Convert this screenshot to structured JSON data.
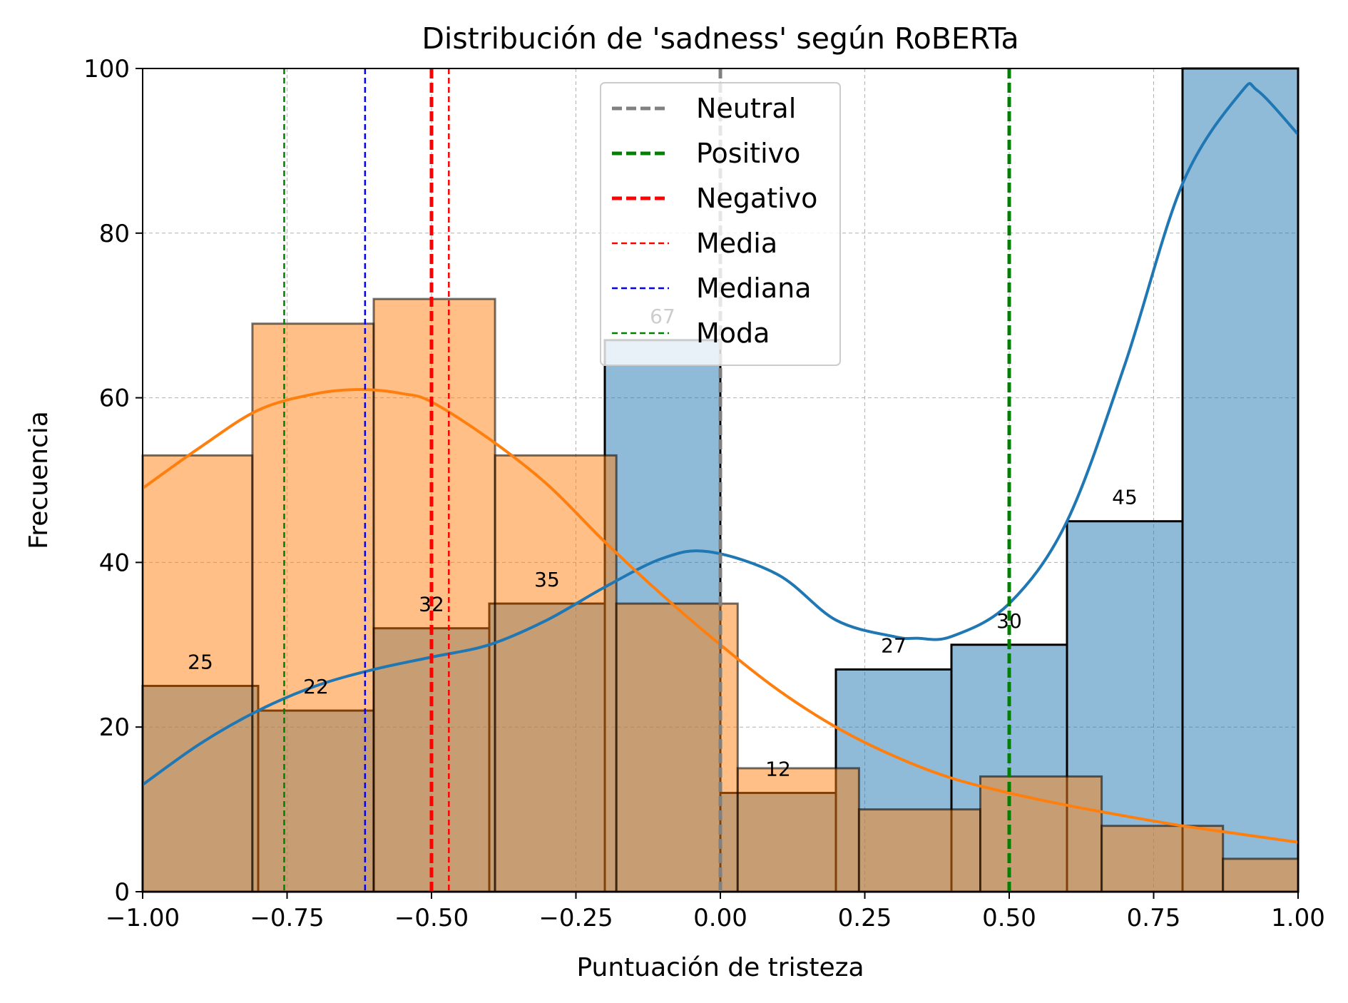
{
  "chart_data": {
    "type": "histogram",
    "title": "Distribución de 'sadness' según RoBERTa",
    "xlabel": "Puntuación de tristeza",
    "ylabel": "Frecuencia",
    "xlim": [
      -1.0,
      1.0
    ],
    "ylim": [
      0,
      100
    ],
    "x_ticks": [
      -1.0,
      -0.75,
      -0.5,
      -0.25,
      0.0,
      0.25,
      0.5,
      0.75,
      1.0
    ],
    "x_tick_labels": [
      "−1.00",
      "−0.75",
      "−0.50",
      "−0.25",
      "0.00",
      "0.25",
      "0.50",
      "0.75",
      "1.00"
    ],
    "y_ticks": [
      0,
      20,
      40,
      60,
      80,
      100
    ],
    "y_tick_labels": [
      "0",
      "20",
      "40",
      "60",
      "80",
      "100"
    ],
    "grid": true,
    "legend_position": "top-center",
    "series": [
      {
        "color": "#1f77b4",
        "bins": [
          {
            "start": -1.0,
            "end": -0.8,
            "value": 25
          },
          {
            "start": -0.8,
            "end": -0.6,
            "value": 22
          },
          {
            "start": -0.6,
            "end": -0.4,
            "value": 32
          },
          {
            "start": -0.4,
            "end": -0.2,
            "value": 35
          },
          {
            "start": -0.2,
            "end": 0.0,
            "value": 67
          },
          {
            "start": 0.0,
            "end": 0.2,
            "value": 12
          },
          {
            "start": 0.2,
            "end": 0.4,
            "value": 27
          },
          {
            "start": 0.4,
            "end": 0.6,
            "value": 30
          },
          {
            "start": 0.6,
            "end": 0.8,
            "value": 45
          },
          {
            "start": 0.8,
            "end": 1.0,
            "value": 100
          }
        ],
        "kde": {
          "x": [
            -1.0,
            -0.9,
            -0.8,
            -0.7,
            -0.6,
            -0.5,
            -0.4,
            -0.3,
            -0.2,
            -0.1,
            -0.02,
            0.1,
            0.2,
            0.3,
            0.34,
            0.4,
            0.5,
            0.6,
            0.7,
            0.8,
            0.9,
            0.93,
            1.0
          ],
          "y": [
            13,
            18,
            22,
            25,
            27,
            28.5,
            30,
            33,
            37,
            40.5,
            41.3,
            38.5,
            33,
            31,
            30.8,
            31,
            35,
            45,
            64,
            86,
            97,
            97.3,
            92
          ]
        }
      },
      {
        "color": "#ff7f0e",
        "bins": [
          {
            "start": -1.0,
            "end": -0.81,
            "value": 53
          },
          {
            "start": -0.81,
            "end": -0.6,
            "value": 69
          },
          {
            "start": -0.6,
            "end": -0.39,
            "value": 72
          },
          {
            "start": -0.39,
            "end": -0.18,
            "value": 53
          },
          {
            "start": -0.18,
            "end": 0.03,
            "value": 35
          },
          {
            "start": 0.03,
            "end": 0.24,
            "value": 15
          },
          {
            "start": 0.24,
            "end": 0.45,
            "value": 10
          },
          {
            "start": 0.45,
            "end": 0.66,
            "value": 14
          },
          {
            "start": 0.66,
            "end": 0.87,
            "value": 8
          },
          {
            "start": 0.87,
            "end": 1.0,
            "value": 4
          }
        ],
        "kde": {
          "x": [
            -1.0,
            -0.9,
            -0.8,
            -0.7,
            -0.62,
            -0.55,
            -0.5,
            -0.4,
            -0.3,
            -0.2,
            -0.1,
            0.0,
            0.1,
            0.2,
            0.3,
            0.4,
            0.5,
            0.6,
            0.7,
            0.8,
            0.9,
            1.0
          ],
          "y": [
            49,
            54,
            58.5,
            60.5,
            61,
            60.5,
            59.5,
            55,
            49.5,
            42.5,
            36,
            30,
            24.5,
            20,
            16.5,
            13.8,
            12,
            10.5,
            9.2,
            8,
            7,
            6
          ]
        }
      }
    ],
    "bar_labels": [
      {
        "x": -0.9,
        "value": 25,
        "text": "25"
      },
      {
        "x": -0.7,
        "value": 22,
        "text": "22"
      },
      {
        "x": -0.5,
        "value": 32,
        "text": "32"
      },
      {
        "x": -0.3,
        "value": 35,
        "text": "35"
      },
      {
        "x": -0.1,
        "value": 67,
        "text": "67"
      },
      {
        "x": 0.1,
        "value": 12,
        "text": "12"
      },
      {
        "x": 0.3,
        "value": 27,
        "text": "27"
      },
      {
        "x": 0.5,
        "value": 30,
        "text": "30"
      },
      {
        "x": 0.7,
        "value": 45,
        "text": "45"
      }
    ],
    "reference_lines": [
      {
        "x": 0.0,
        "label": "Neutral",
        "color": "#808080",
        "style": "thick-dashed"
      },
      {
        "x": 0.5,
        "label": "Positivo",
        "color": "#008000",
        "style": "thick-dashed"
      },
      {
        "x": -0.5,
        "label": "Negativo",
        "color": "#ff0000",
        "style": "thick-dashed"
      },
      {
        "x": -0.47,
        "label": "Media",
        "color": "#ff0000",
        "style": "thin-dashed"
      },
      {
        "x": -0.615,
        "label": "Mediana",
        "color": "#0000ff",
        "style": "thin-dashed"
      },
      {
        "x": -0.755,
        "label": "Moda",
        "color": "#008000",
        "style": "thin-dashed"
      }
    ]
  }
}
